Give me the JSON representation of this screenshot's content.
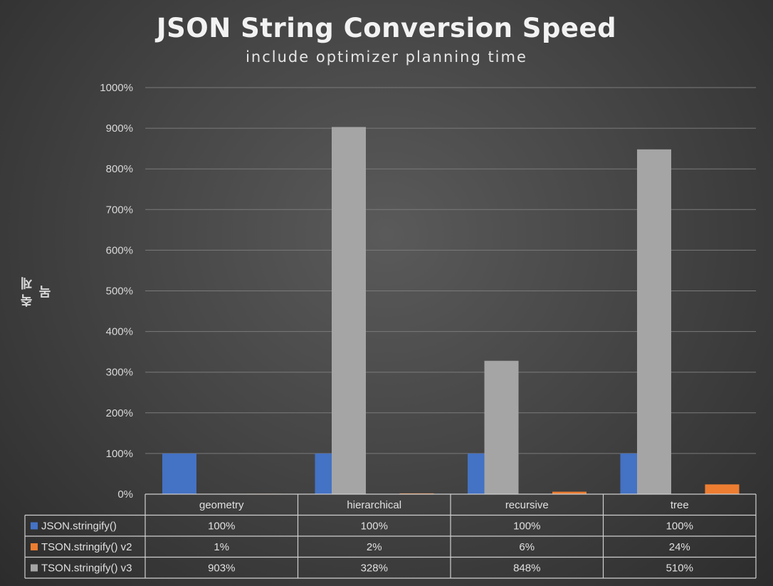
{
  "chart_data": {
    "type": "bar",
    "title": "JSON String Conversion Speed",
    "subtitle": "include optimizer planning time",
    "ylabel": "축 제목",
    "xlabel": "",
    "categories": [
      "geometry",
      "hierarchical",
      "recursive",
      "tree"
    ],
    "series": [
      {
        "name": "JSON.stringify()",
        "values": [
          100,
          100,
          100,
          100
        ],
        "labels": [
          "100%",
          "100%",
          "100%",
          "100%"
        ],
        "color": "#4472c4"
      },
      {
        "name": "TSON.stringify() v2",
        "values": [
          1,
          2,
          6,
          24
        ],
        "labels": [
          "1%",
          "2%",
          "6%",
          "24%"
        ],
        "color": "#ed7d31"
      },
      {
        "name": "TSON.stringify() v3",
        "values": [
          903,
          328,
          848,
          510
        ],
        "labels": [
          "903%",
          "328%",
          "848%",
          "510%"
        ],
        "color": "#a5a5a5"
      }
    ],
    "ylim": [
      0,
      1000
    ],
    "yticks": [
      "0%",
      "100%",
      "200%",
      "300%",
      "400%",
      "500%",
      "600%",
      "700%",
      "800%",
      "900%",
      "1000%"
    ],
    "grid": true,
    "legend": "data-table"
  }
}
